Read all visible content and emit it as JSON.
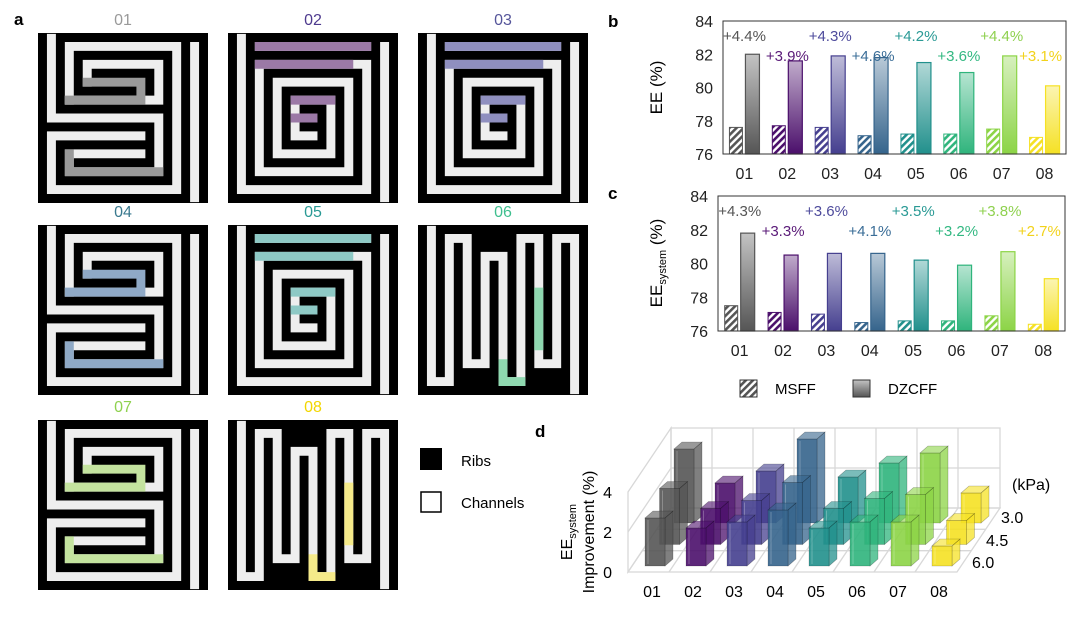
{
  "panel_labels": {
    "a": "a",
    "b": "b",
    "c": "c",
    "d": "d"
  },
  "panel_a": {
    "mazes": [
      {
        "label": "01",
        "title_color": "#9a9a9a",
        "highlight": "#999999"
      },
      {
        "label": "02",
        "title_color": "#4e3a8e",
        "highlight": "#9b79a6"
      },
      {
        "label": "03",
        "title_color": "#55559a",
        "highlight": "#8f8fbf"
      },
      {
        "label": "04",
        "title_color": "#3a7a8f",
        "highlight": "#8fa9c6"
      },
      {
        "label": "05",
        "title_color": "#2a9a95",
        "highlight": "#8ec9c5"
      },
      {
        "label": "06",
        "title_color": "#3fbf8f",
        "highlight": "#8fd8b0"
      },
      {
        "label": "07",
        "title_color": "#8fd14f",
        "highlight": "#c4e39f"
      },
      {
        "label": "08",
        "title_color": "#f2d600",
        "highlight": "#f5ea8a"
      }
    ],
    "legend": {
      "ribs": "Ribs",
      "channels": "Channels"
    }
  },
  "colors": [
    "#555555",
    "#4b0f6b",
    "#453f8f",
    "#35648c",
    "#21908c",
    "#2fb47c",
    "#8cd446",
    "#f5e124"
  ],
  "label_colors": [
    "#555555",
    "#5a1a78",
    "#4e4b9c",
    "#3a6d97",
    "#2a9a95",
    "#33b882",
    "#8fd14f",
    "#f2d21b"
  ],
  "chart_data": [
    {
      "id": "b",
      "type": "bar",
      "ylabel": "EE (%)",
      "ylim": [
        76,
        84
      ],
      "yticks": [
        "76",
        "78",
        "80",
        "82",
        "84"
      ],
      "categories": [
        "01",
        "02",
        "03",
        "04",
        "05",
        "06",
        "07",
        "08"
      ],
      "series": [
        {
          "name": "MSFF",
          "values": [
            77.6,
            77.7,
            77.6,
            77.1,
            77.2,
            77.2,
            77.5,
            77.0
          ]
        },
        {
          "name": "DZCFF",
          "values": [
            82.0,
            81.6,
            81.9,
            81.8,
            81.5,
            80.9,
            81.9,
            80.1
          ]
        }
      ],
      "annotations": [
        "+4.4%",
        "+3.9%",
        "+4.3%",
        "+4.6%",
        "+4.2%",
        "+3.6%",
        "+4.4%",
        "+3.1%"
      ]
    },
    {
      "id": "c",
      "type": "bar",
      "ylabel_main": "EE",
      "ylabel_sub": "system",
      "ylabel_unit": " (%)",
      "ylim": [
        76,
        84
      ],
      "yticks": [
        "76",
        "78",
        "80",
        "82",
        "84"
      ],
      "categories": [
        "01",
        "02",
        "03",
        "04",
        "05",
        "06",
        "07",
        "08"
      ],
      "series": [
        {
          "name": "MSFF",
          "values": [
            77.5,
            77.1,
            77.0,
            76.5,
            76.6,
            76.6,
            76.9,
            76.4
          ]
        },
        {
          "name": "DZCFF",
          "values": [
            81.8,
            80.5,
            80.6,
            80.6,
            80.2,
            79.9,
            80.7,
            79.1
          ]
        }
      ],
      "annotations": [
        "+4.3%",
        "+3.3%",
        "+3.6%",
        "+4.1%",
        "+3.5%",
        "+3.2%",
        "+3.8%",
        "+2.7%"
      ],
      "legend": {
        "msff": "MSFF",
        "dzcff": "DZCFF",
        "placement": "bottom"
      }
    },
    {
      "id": "d",
      "type": "bar3d",
      "ylabel_main": "EE",
      "ylabel_sub": "system",
      "ylabel_line2": "Improvement (%)",
      "zlim": [
        0,
        4
      ],
      "zticks": [
        "0",
        "2",
        "4"
      ],
      "categories": [
        "01",
        "02",
        "03",
        "04",
        "05",
        "06",
        "07",
        "08"
      ],
      "depth_label": "(kPa)",
      "depth_categories": [
        "3.0",
        "4.5",
        "6.0"
      ],
      "series": [
        {
          "name": "3.0",
          "values": [
            3.7,
            2.0,
            2.6,
            4.2,
            2.3,
            3.0,
            3.5,
            1.5
          ]
        },
        {
          "name": "4.5",
          "values": [
            2.8,
            1.8,
            2.2,
            3.1,
            1.8,
            2.3,
            2.5,
            1.2
          ]
        },
        {
          "name": "6.0",
          "values": [
            2.4,
            1.9,
            2.2,
            2.8,
            1.9,
            2.2,
            2.2,
            1.0
          ]
        }
      ]
    }
  ]
}
